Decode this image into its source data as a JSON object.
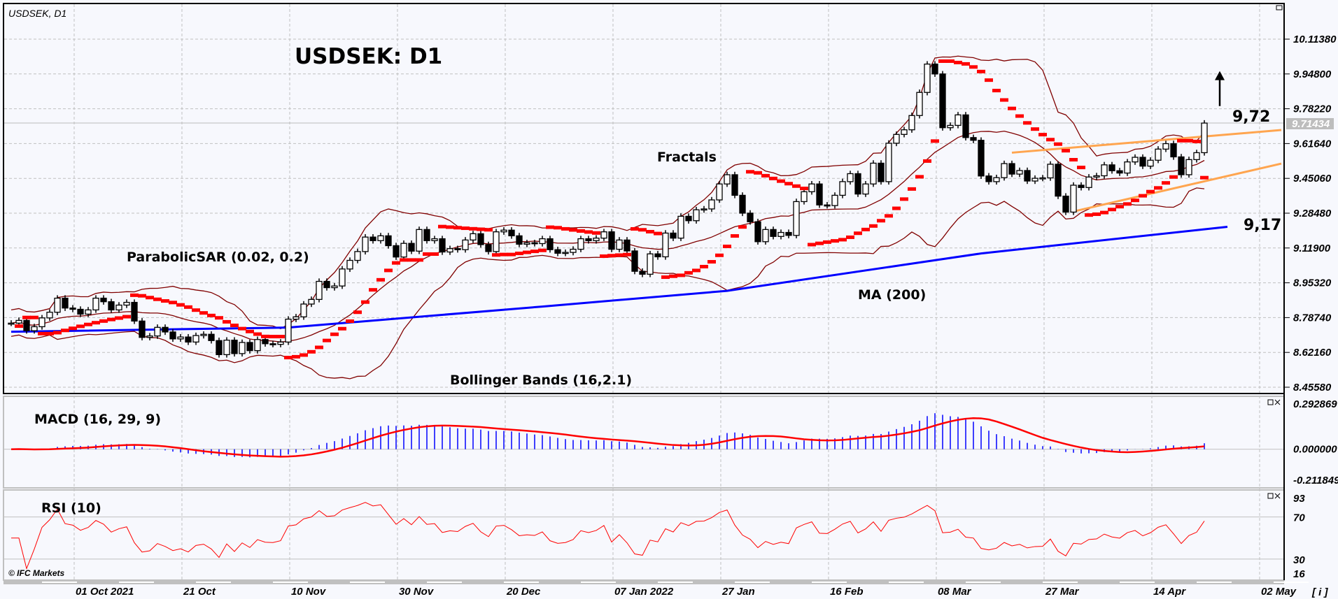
{
  "window": {
    "symbol_label": "USDSEK, D1",
    "copyright": "© IFC Markets",
    "info_button": "[ i ]"
  },
  "annotations": {
    "title": "USDSEK: D1",
    "parabolic_sar": "ParabolicSAR (0.02, 0.2)",
    "fractals": "Fractals",
    "ma": "MA (200)",
    "bollinger": "Bollinger Bands (16,2.1)",
    "macd": "MACD (16, 29, 9)",
    "rsi": "RSI (10)",
    "resistance_value": "9,72",
    "support_value": "9,17"
  },
  "colors": {
    "background": "#f7f8fd",
    "bull_candle": "#ffffff",
    "bear_candle": "#000000",
    "sar": "#ff0000",
    "bollinger": "#800000",
    "ma200": "#0000ff",
    "trendline": "#ffa54f",
    "fractal_up": "#00dd00",
    "fractal_down": "#ff0000",
    "macd_hist": "#0000ff",
    "macd_signal": "#ff0000",
    "rsi": "#ff0000",
    "grid": "#c0c0c0"
  },
  "chart_data": [
    {
      "type": "candlestick",
      "title": "USDSEK: D1",
      "price_ticks": [
        "10.11380",
        "9.94800",
        "9.78220",
        "9.61640",
        "9.45060",
        "9.28480",
        "9.11900",
        "8.95320",
        "8.78740",
        "8.62160",
        "8.45580"
      ],
      "ylim": [
        8.4,
        10.26
      ],
      "current_price": "9.71434",
      "x_tick_labels": [
        "01 Oct 2021",
        "21 Oct",
        "10 Nov",
        "30 Nov",
        "20 Dec",
        "07 Jan 2022",
        "27 Jan",
        "16 Feb",
        "08 Mar",
        "27 Mar",
        "14 Apr",
        "02 May"
      ],
      "close": [
        8.761,
        8.774,
        8.725,
        8.744,
        8.786,
        8.813,
        8.88,
        8.833,
        8.827,
        8.804,
        8.824,
        8.88,
        8.863,
        8.824,
        8.847,
        8.86,
        8.771,
        8.693,
        8.7,
        8.741,
        8.719,
        8.686,
        8.695,
        8.671,
        8.702,
        8.708,
        8.678,
        8.611,
        8.68,
        8.616,
        8.669,
        8.63,
        8.683,
        8.663,
        8.66,
        8.671,
        8.78,
        8.791,
        8.852,
        8.874,
        8.96,
        8.93,
        8.938,
        9.019,
        9.06,
        9.102,
        9.171,
        9.154,
        9.177,
        9.13,
        9.076,
        9.141,
        9.104,
        9.207,
        9.154,
        9.163,
        9.1,
        9.116,
        9.111,
        9.157,
        9.187,
        9.135,
        9.102,
        9.196,
        9.204,
        9.177,
        9.137,
        9.144,
        9.14,
        9.163,
        9.111,
        9.094,
        9.098,
        9.113,
        9.163,
        9.154,
        9.166,
        9.196,
        9.113,
        9.157,
        9.105,
        9.008,
        8.994,
        9.091,
        9.077,
        9.19,
        9.166,
        9.27,
        9.249,
        9.301,
        9.305,
        9.348,
        9.424,
        9.468,
        9.37,
        9.285,
        9.244,
        9.149,
        9.207,
        9.174,
        9.193,
        9.179,
        9.34,
        9.387,
        9.424,
        9.324,
        9.321,
        9.37,
        9.435,
        9.473,
        9.376,
        9.424,
        9.523,
        9.435,
        9.618,
        9.66,
        9.682,
        9.75,
        9.86,
        9.995,
        9.948,
        9.692,
        9.703,
        9.753,
        9.645,
        9.632,
        9.462,
        9.435,
        9.454,
        9.521,
        9.471,
        9.488,
        9.438,
        9.451,
        9.453,
        9.518,
        9.366,
        9.29,
        9.418,
        9.407,
        9.457,
        9.463,
        9.515,
        9.487,
        9.476,
        9.529,
        9.551,
        9.509,
        9.537,
        9.59,
        9.616,
        9.553,
        9.468,
        9.54,
        9.573,
        9.714
      ],
      "ma200_anchors": [
        [
          0,
          8.72
        ],
        [
          36,
          8.74
        ],
        [
          69,
          8.84
        ],
        [
          93,
          8.915
        ],
        [
          126,
          9.093
        ],
        [
          158,
          9.22
        ]
      ],
      "indicators": {
        "ma_period": 200,
        "bollinger": [
          16,
          2.1
        ],
        "sar": [
          0.02,
          0.2
        ],
        "fractals": true
      },
      "trendlines": [
        {
          "from": [
            130,
            9.573
          ],
          "to": [
            165,
            9.681
          ]
        },
        {
          "from": [
            138,
            9.293
          ],
          "to": [
            165,
            9.521
          ]
        }
      ],
      "arrow": {
        "direction": "up",
        "at_bar": 157,
        "from": 9.795,
        "to": 9.962
      },
      "grid": true
    },
    {
      "type": "bar",
      "name": "MACD (16, 29, 9)",
      "ticks": [
        "0.292869",
        "0.000000",
        "-0.211849"
      ],
      "ylim": [
        -0.211849,
        0.292869
      ],
      "params": [
        16,
        29,
        9
      ]
    },
    {
      "type": "line",
      "name": "RSI (10)",
      "ticks": [
        "93",
        "70",
        "30",
        "16"
      ],
      "ylim": [
        16,
        93
      ],
      "levels": [
        70,
        30
      ],
      "period": 10
    }
  ]
}
